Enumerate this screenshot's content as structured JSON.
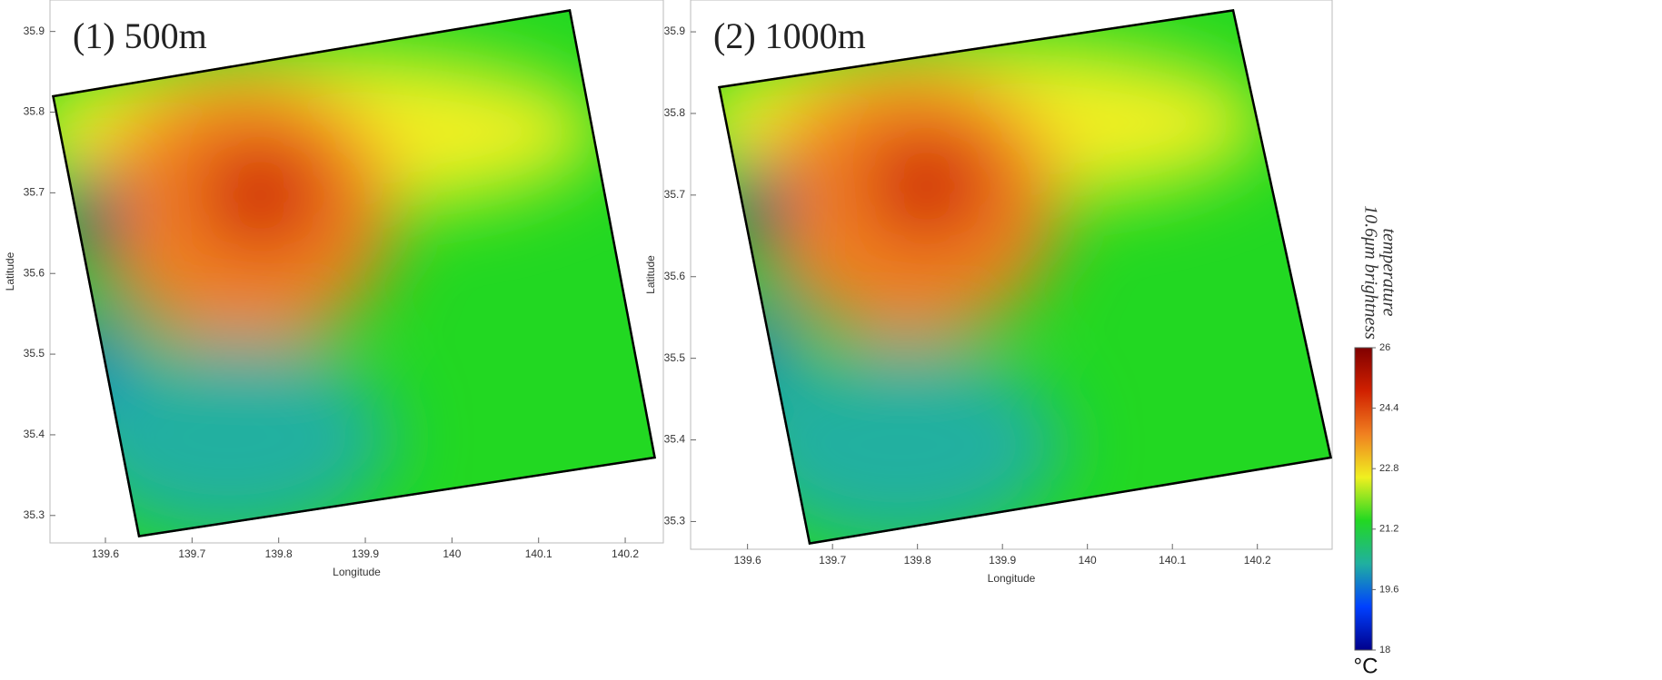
{
  "chart_data": [
    {
      "type": "heatmap",
      "title": "(1) 500m",
      "x_label": "Longitude",
      "y_label": "Latitude",
      "xlim": [
        139.536,
        140.244
      ],
      "ylim": [
        35.266,
        35.939
      ],
      "xticks": [
        139.6,
        139.7,
        139.8,
        139.9,
        140,
        140.1,
        140.2
      ],
      "yticks": [
        35.3,
        35.4,
        35.5,
        35.6,
        35.7,
        35.8,
        35.9
      ]
    },
    {
      "type": "heatmap",
      "title": "(2) 1000m",
      "x_label": "Longitude",
      "y_label": "Latitude",
      "xlim": [
        139.533,
        140.288
      ],
      "ylim": [
        35.266,
        35.939
      ],
      "xticks": [
        139.6,
        139.7,
        139.8,
        139.9,
        140,
        140.1,
        140.2
      ],
      "yticks": [
        35.3,
        35.4,
        35.5,
        35.6,
        35.7,
        35.8,
        35.9
      ]
    }
  ],
  "colorbar": {
    "label": [
      "10.6μm brightness",
      "temperature"
    ],
    "unit": "°C",
    "lim": [
      18,
      26
    ],
    "ticks": [
      18,
      19.6,
      21.2,
      22.8,
      24.4,
      26
    ],
    "colors": [
      "#00008b",
      "#0040ff",
      "#20b0a0",
      "#22d822",
      "#f0f020",
      "#f08020",
      "#d02000",
      "#800000"
    ]
  }
}
